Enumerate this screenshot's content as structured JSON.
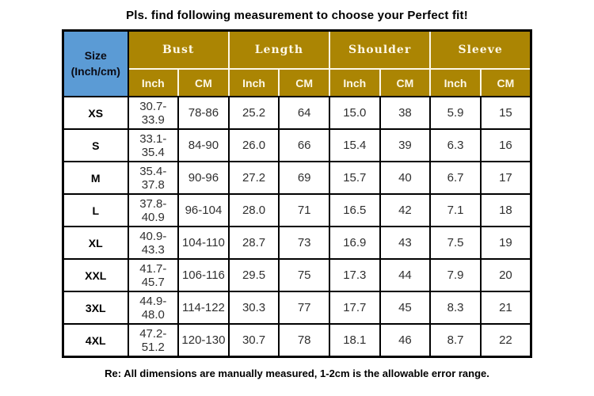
{
  "colors": {
    "header_gold": "#AB8503",
    "header_blue": "#5B9BD5",
    "header_cream": "#FDF8E7",
    "border_black": "#000000",
    "cell_text": "#303030"
  },
  "chart_data": {
    "type": "table",
    "title": "Pls. find following measurement to choose your Perfect fit!",
    "corner_header": {
      "line1": "Size",
      "line2": "(Inch/cm)"
    },
    "column_groups": [
      "Bust",
      "Length",
      "Shoulder",
      "Sleeve"
    ],
    "unit_headers": [
      "Inch",
      "CM",
      "Inch",
      "CM",
      "Inch",
      "CM",
      "Inch",
      "CM"
    ],
    "rows": [
      {
        "size": "XS",
        "values": [
          "30.7-33.9",
          "78-86",
          "25.2",
          "64",
          "15.0",
          "38",
          "5.9",
          "15"
        ]
      },
      {
        "size": "S",
        "values": [
          "33.1-35.4",
          "84-90",
          "26.0",
          "66",
          "15.4",
          "39",
          "6.3",
          "16"
        ]
      },
      {
        "size": "M",
        "values": [
          "35.4-37.8",
          "90-96",
          "27.2",
          "69",
          "15.7",
          "40",
          "6.7",
          "17"
        ]
      },
      {
        "size": "L",
        "values": [
          "37.8-40.9",
          "96-104",
          "28.0",
          "71",
          "16.5",
          "42",
          "7.1",
          "18"
        ]
      },
      {
        "size": "XL",
        "values": [
          "40.9-43.3",
          "104-110",
          "28.7",
          "73",
          "16.9",
          "43",
          "7.5",
          "19"
        ]
      },
      {
        "size": "XXL",
        "values": [
          "41.7-45.7",
          "106-116",
          "29.5",
          "75",
          "17.3",
          "44",
          "7.9",
          "20"
        ]
      },
      {
        "size": "3XL",
        "values": [
          "44.9-48.0",
          "114-122",
          "30.3",
          "77",
          "17.7",
          "45",
          "8.3",
          "21"
        ]
      },
      {
        "size": "4XL",
        "values": [
          "47.2-51.2",
          "120-130",
          "30.7",
          "78",
          "18.1",
          "46",
          "8.7",
          "22"
        ]
      }
    ],
    "footnote": "Re: All dimensions are manually measured, 1-2cm is the allowable error range."
  }
}
